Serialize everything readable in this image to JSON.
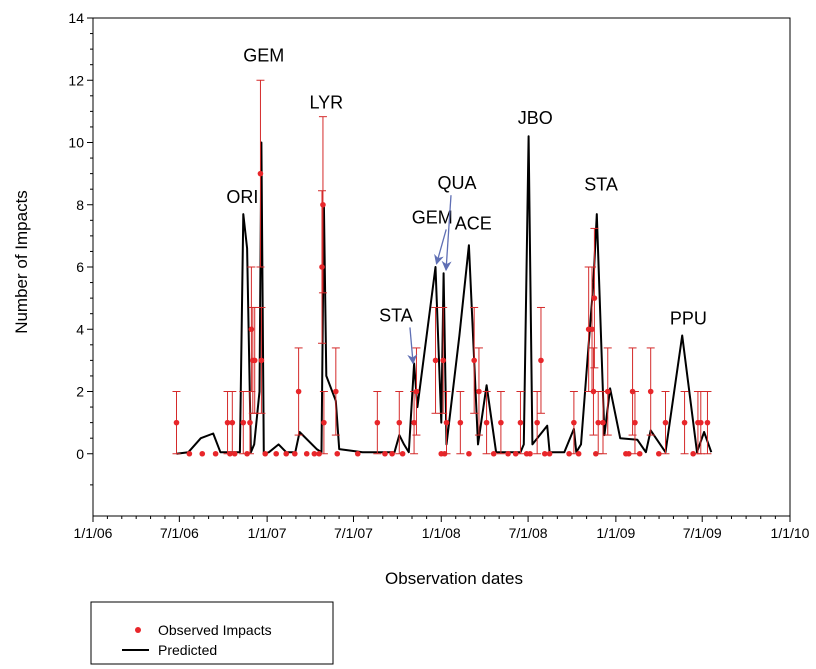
{
  "chart_data": {
    "type": "scatter",
    "xlabel": "Observation dates",
    "ylabel": "Number of Impacts",
    "x_tick_labels": [
      "1/1/06",
      "7/1/06",
      "1/1/07",
      "7/1/07",
      "1/1/08",
      "7/1/08",
      "1/1/09",
      "7/1/09",
      "1/1/10"
    ],
    "x_tick_dates": [
      "2006-01-01",
      "2006-07-01",
      "2007-01-01",
      "2007-07-01",
      "2008-01-01",
      "2008-07-01",
      "2009-01-01",
      "2009-07-01",
      "2010-01-01"
    ],
    "xlim": [
      "2006-01-01",
      "2010-01-01"
    ],
    "ylim": [
      -2,
      14
    ],
    "y_ticks": [
      0,
      2,
      4,
      6,
      8,
      10,
      12,
      14
    ],
    "y_tick_labels": [
      "0",
      "2",
      "4",
      "6",
      "8",
      "10",
      "12",
      "14"
    ],
    "grid": false,
    "legend": {
      "position": "bottom-left",
      "entries": [
        "Observed Impacts",
        "Predicted"
      ]
    },
    "colors": {
      "observed": "#e8262a",
      "errorbar": "#d42a2a",
      "predicted": "#000000",
      "arrow": "#5f6fb4"
    },
    "series": [
      {
        "name": "Observed Impacts",
        "kind": "points",
        "points": [
          {
            "x": "2006-06-25",
            "y": 1,
            "err": 1
          },
          {
            "x": "2006-07-22",
            "y": 0
          },
          {
            "x": "2006-08-18",
            "y": 0
          },
          {
            "x": "2006-09-15",
            "y": 0
          },
          {
            "x": "2006-10-10",
            "y": 1,
            "err": 1
          },
          {
            "x": "2006-10-15",
            "y": 0
          },
          {
            "x": "2006-10-20",
            "y": 1,
            "err": 1
          },
          {
            "x": "2006-10-25",
            "y": 0
          },
          {
            "x": "2006-11-12",
            "y": 1,
            "err": 1
          },
          {
            "x": "2006-11-20",
            "y": 0
          },
          {
            "x": "2006-11-26",
            "y": 1,
            "err": 1
          },
          {
            "x": "2006-11-29",
            "y": 4,
            "err": 2
          },
          {
            "x": "2006-12-02",
            "y": 3,
            "err": 1.7
          },
          {
            "x": "2006-12-06",
            "y": 3,
            "err": 1.7
          },
          {
            "x": "2006-12-18",
            "y": 9,
            "err": 3
          },
          {
            "x": "2006-12-20",
            "y": 3,
            "err": 1.7
          },
          {
            "x": "2006-12-28",
            "y": 0
          },
          {
            "x": "2007-01-20",
            "y": 0
          },
          {
            "x": "2007-02-10",
            "y": 0
          },
          {
            "x": "2007-02-28",
            "y": 0
          },
          {
            "x": "2007-03-08",
            "y": 2,
            "err": 1.4
          },
          {
            "x": "2007-03-25",
            "y": 0
          },
          {
            "x": "2007-04-10",
            "y": 0
          },
          {
            "x": "2007-04-20",
            "y": 0
          },
          {
            "x": "2007-04-26",
            "y": 6,
            "err": 2.45
          },
          {
            "x": "2007-04-28",
            "y": 8,
            "err": 2.83
          },
          {
            "x": "2007-04-30",
            "y": 1,
            "err": 1
          },
          {
            "x": "2007-05-25",
            "y": 2,
            "err": 1.4
          },
          {
            "x": "2007-05-28",
            "y": 0
          },
          {
            "x": "2007-07-10",
            "y": 0
          },
          {
            "x": "2007-08-20",
            "y": 1,
            "err": 1
          },
          {
            "x": "2007-09-05",
            "y": 0
          },
          {
            "x": "2007-09-20",
            "y": 0
          },
          {
            "x": "2007-10-05",
            "y": 1,
            "err": 1
          },
          {
            "x": "2007-10-12",
            "y": 0
          },
          {
            "x": "2007-11-05",
            "y": 1,
            "err": 1
          },
          {
            "x": "2007-11-10",
            "y": 2,
            "err": 1.4
          },
          {
            "x": "2007-12-20",
            "y": 3,
            "err": 1.7
          },
          {
            "x": "2008-01-01",
            "y": 0
          },
          {
            "x": "2008-01-05",
            "y": 3,
            "err": 1.7
          },
          {
            "x": "2008-01-08",
            "y": 0
          },
          {
            "x": "2008-01-12",
            "y": 1,
            "err": 1
          },
          {
            "x": "2008-02-10",
            "y": 1,
            "err": 1
          },
          {
            "x": "2008-02-28",
            "y": 0
          },
          {
            "x": "2008-03-10",
            "y": 3,
            "err": 1.7
          },
          {
            "x": "2008-03-20",
            "y": 2,
            "err": 1.4
          },
          {
            "x": "2008-04-05",
            "y": 1,
            "err": 1
          },
          {
            "x": "2008-04-20",
            "y": 0
          },
          {
            "x": "2008-05-05",
            "y": 1,
            "err": 1
          },
          {
            "x": "2008-05-20",
            "y": 0
          },
          {
            "x": "2008-06-05",
            "y": 0
          },
          {
            "x": "2008-06-15",
            "y": 1,
            "err": 1
          },
          {
            "x": "2008-06-28",
            "y": 0
          },
          {
            "x": "2008-07-05",
            "y": 0
          },
          {
            "x": "2008-07-20",
            "y": 1,
            "err": 1
          },
          {
            "x": "2008-07-28",
            "y": 3,
            "err": 1.7
          },
          {
            "x": "2008-08-05",
            "y": 0
          },
          {
            "x": "2008-08-15",
            "y": 0
          },
          {
            "x": "2008-09-25",
            "y": 0
          },
          {
            "x": "2008-10-05",
            "y": 1,
            "err": 1
          },
          {
            "x": "2008-10-15",
            "y": 0
          },
          {
            "x": "2008-11-05",
            "y": 4,
            "err": 2
          },
          {
            "x": "2008-11-12",
            "y": 4,
            "err": 2
          },
          {
            "x": "2008-11-15",
            "y": 2,
            "err": 1.4
          },
          {
            "x": "2008-11-17",
            "y": 5,
            "err": 2.24
          },
          {
            "x": "2008-11-20",
            "y": 0
          },
          {
            "x": "2008-11-25",
            "y": 1,
            "err": 1
          },
          {
            "x": "2008-12-05",
            "y": 1,
            "err": 1
          },
          {
            "x": "2008-12-15",
            "y": 2,
            "err": 1.4
          },
          {
            "x": "2009-01-22",
            "y": 0
          },
          {
            "x": "2009-01-28",
            "y": 0
          },
          {
            "x": "2009-02-05",
            "y": 2,
            "err": 1.4
          },
          {
            "x": "2009-02-10",
            "y": 1,
            "err": 1
          },
          {
            "x": "2009-02-20",
            "y": 0
          },
          {
            "x": "2009-03-15",
            "y": 2,
            "err": 1.4
          },
          {
            "x": "2009-04-01",
            "y": 0
          },
          {
            "x": "2009-04-15",
            "y": 1,
            "err": 1
          },
          {
            "x": "2009-05-25",
            "y": 1,
            "err": 1
          },
          {
            "x": "2009-06-12",
            "y": 0
          },
          {
            "x": "2009-06-22",
            "y": 1,
            "err": 1
          },
          {
            "x": "2009-06-28",
            "y": 1,
            "err": 1
          },
          {
            "x": "2009-07-12",
            "y": 1,
            "err": 1
          }
        ]
      },
      {
        "name": "Predicted",
        "kind": "line",
        "points": [
          [
            "2006-06-25",
            0
          ],
          [
            "2006-07-20",
            0.05
          ],
          [
            "2006-08-15",
            0.5
          ],
          [
            "2006-09-10",
            0.65
          ],
          [
            "2006-09-25",
            0.05
          ],
          [
            "2006-10-20",
            0.05
          ],
          [
            "2006-11-05",
            0.05
          ],
          [
            "2006-11-12",
            7.7
          ],
          [
            "2006-11-20",
            6.6
          ],
          [
            "2006-11-28",
            0.05
          ],
          [
            "2006-12-05",
            0.3
          ],
          [
            "2006-12-16",
            2
          ],
          [
            "2006-12-20",
            10
          ],
          [
            "2006-12-25",
            0
          ],
          [
            "2007-01-05",
            0.05
          ],
          [
            "2007-01-25",
            0.3
          ],
          [
            "2007-02-10",
            0.05
          ],
          [
            "2007-03-01",
            0.05
          ],
          [
            "2007-03-10",
            0.7
          ],
          [
            "2007-04-15",
            0.15
          ],
          [
            "2007-04-25",
            0.05
          ],
          [
            "2007-04-30",
            8
          ],
          [
            "2007-05-05",
            2.5
          ],
          [
            "2007-05-25",
            1.7
          ],
          [
            "2007-06-01",
            0.15
          ],
          [
            "2007-06-25",
            0.1
          ],
          [
            "2007-07-20",
            0.05
          ],
          [
            "2007-08-20",
            0.05
          ],
          [
            "2007-09-10",
            0.05
          ],
          [
            "2007-09-25",
            0.05
          ],
          [
            "2007-10-05",
            0.6
          ],
          [
            "2007-10-15",
            0.3
          ],
          [
            "2007-10-25",
            0.05
          ],
          [
            "2007-11-05",
            2.9
          ],
          [
            "2007-11-12",
            1.5
          ],
          [
            "2007-12-20",
            6
          ],
          [
            "2008-01-01",
            1
          ],
          [
            "2008-01-06",
            5.8
          ],
          [
            "2008-01-12",
            0.3
          ],
          [
            "2008-02-08",
            3.8
          ],
          [
            "2008-02-28",
            6.7
          ],
          [
            "2008-03-18",
            0.3
          ],
          [
            "2008-04-05",
            2.2
          ],
          [
            "2008-04-25",
            0.05
          ],
          [
            "2008-05-20",
            0.05
          ],
          [
            "2008-06-15",
            0.05
          ],
          [
            "2008-06-22",
            0.3
          ],
          [
            "2008-07-02",
            10.2
          ],
          [
            "2008-07-10",
            0.3
          ],
          [
            "2008-08-10",
            0.9
          ],
          [
            "2008-08-15",
            0.05
          ],
          [
            "2008-09-15",
            0.05
          ],
          [
            "2008-10-05",
            0.8
          ],
          [
            "2008-10-10",
            0.05
          ],
          [
            "2008-10-20",
            0.3
          ],
          [
            "2008-11-15",
            5.5
          ],
          [
            "2008-11-22",
            7.7
          ],
          [
            "2008-12-08",
            0.6
          ],
          [
            "2008-12-20",
            2.1
          ],
          [
            "2009-01-10",
            0.5
          ],
          [
            "2009-02-15",
            0.45
          ],
          [
            "2009-03-05",
            0.05
          ],
          [
            "2009-03-15",
            0.75
          ],
          [
            "2009-04-15",
            0.05
          ],
          [
            "2009-05-20",
            3.8
          ],
          [
            "2009-06-20",
            0.05
          ],
          [
            "2009-07-05",
            0.7
          ],
          [
            "2009-07-20",
            0.05
          ]
        ]
      }
    ],
    "annotations": [
      {
        "text": "ORI",
        "x": "2006-11-10",
        "y": 8.05
      },
      {
        "text": "GEM",
        "x": "2006-12-25",
        "y": 12.6
      },
      {
        "text": "LYR",
        "x": "2007-05-05",
        "y": 11.1
      },
      {
        "text": "STA",
        "x": "2007-09-28",
        "y": 4.25,
        "arrow_to": {
          "x": "2007-11-03",
          "y": 2.9
        }
      },
      {
        "text": "GEM",
        "x": "2007-12-13",
        "y": 7.4,
        "arrow_to": {
          "x": "2007-12-22",
          "y": 6.1
        }
      },
      {
        "text": "QUA",
        "x": "2008-02-03",
        "y": 8.5,
        "arrow_to": {
          "x": "2008-01-11",
          "y": 5.9
        }
      },
      {
        "text": "ACE",
        "x": "2008-03-08",
        "y": 7.2
      },
      {
        "text": "JBO",
        "x": "2008-07-16",
        "y": 10.6
      },
      {
        "text": "STA",
        "x": "2008-12-01",
        "y": 8.45
      },
      {
        "text": "PPU",
        "x": "2009-06-02",
        "y": 4.15
      }
    ]
  }
}
